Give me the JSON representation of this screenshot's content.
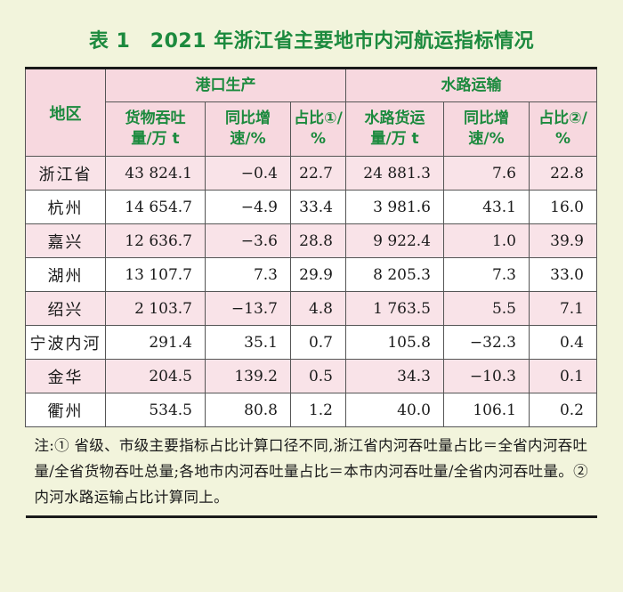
{
  "title": "表 1　2021 年浙江省主要地市内河航运指标情况",
  "headers": {
    "region": "地区",
    "group_port": "港口生产",
    "group_water": "水路运输",
    "port_cargo_l1": "货物吞吐",
    "port_cargo_l2": "量/万 t",
    "port_growth_l1": "同比增",
    "port_growth_l2": "速/%",
    "port_share_l1": "占比①/",
    "port_share_l2": "%",
    "water_cargo_l1": "水路货运",
    "water_cargo_l2": "量/万 t",
    "water_growth_l1": "同比增",
    "water_growth_l2": "速/%",
    "water_share_l1": "占比②/",
    "water_share_l2": "%"
  },
  "rows": [
    {
      "region": "浙江省",
      "port_cargo": "43 824.1",
      "port_growth": "−0.4",
      "port_share": "22.7",
      "water_cargo": "24 881.3",
      "water_growth": "7.6",
      "water_share": "22.8"
    },
    {
      "region": "杭州",
      "port_cargo": "14 654.7",
      "port_growth": "−4.9",
      "port_share": "33.4",
      "water_cargo": "3 981.6",
      "water_growth": "43.1",
      "water_share": "16.0"
    },
    {
      "region": "嘉兴",
      "port_cargo": "12 636.7",
      "port_growth": "−3.6",
      "port_share": "28.8",
      "water_cargo": "9 922.4",
      "water_growth": "1.0",
      "water_share": "39.9"
    },
    {
      "region": "湖州",
      "port_cargo": "13 107.7",
      "port_growth": "7.3",
      "port_share": "29.9",
      "water_cargo": "8 205.3",
      "water_growth": "7.3",
      "water_share": "33.0"
    },
    {
      "region": "绍兴",
      "port_cargo": "2 103.7",
      "port_growth": "−13.7",
      "port_share": "4.8",
      "water_cargo": "1 763.5",
      "water_growth": "5.5",
      "water_share": "7.1"
    },
    {
      "region": "宁波内河",
      "port_cargo": "291.4",
      "port_growth": "35.1",
      "port_share": "0.7",
      "water_cargo": "105.8",
      "water_growth": "−32.3",
      "water_share": "0.4"
    },
    {
      "region": "金华",
      "port_cargo": "204.5",
      "port_growth": "139.2",
      "port_share": "0.5",
      "water_cargo": "34.3",
      "water_growth": "−10.3",
      "water_share": "0.1"
    },
    {
      "region": "衢州",
      "port_cargo": "534.5",
      "port_growth": "80.8",
      "port_share": "1.2",
      "water_cargo": "40.0",
      "water_growth": "106.1",
      "water_share": "0.2"
    }
  ],
  "note": "注:① 省级、市级主要指标占比计算口径不同,浙江省内河吞吐量占比＝全省内河吞吐量/全省货物吞吐总量;各地市内河吞吐量占比＝本市内河吞吐量/全省内河吞吐量。② 内河水路运输占比计算同上。"
}
